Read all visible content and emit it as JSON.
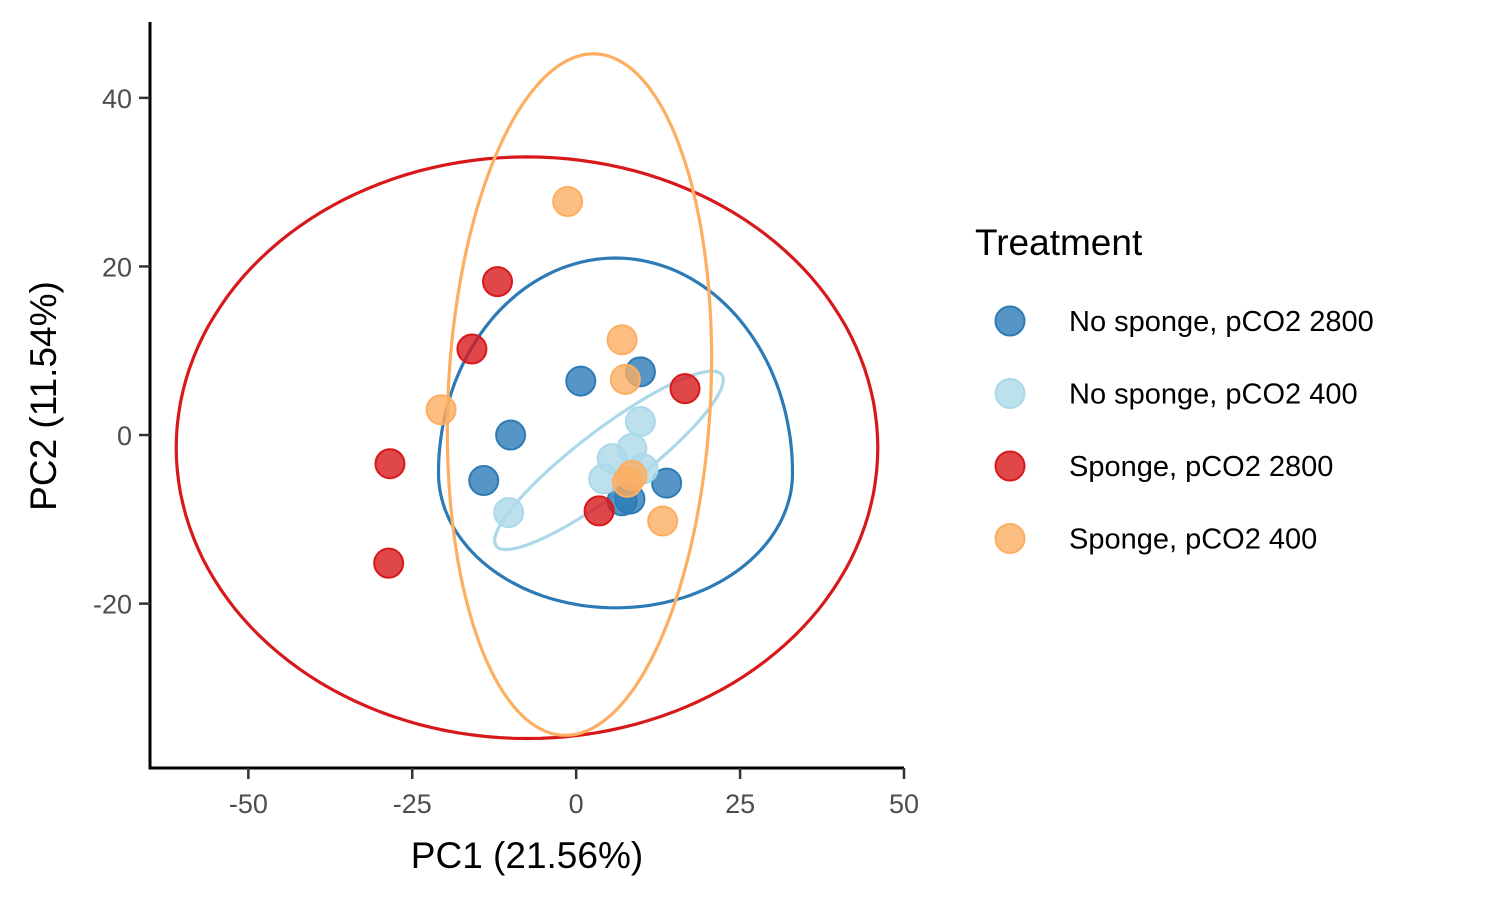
{
  "chart_data": {
    "type": "scatter",
    "xlabel": "PC1 (21.56%)",
    "ylabel": "PC2 (11.54%)",
    "xlim": [
      -65,
      50
    ],
    "ylim": [
      -39.5,
      49
    ],
    "x_ticks": [
      -50,
      -25,
      0,
      25,
      50
    ],
    "x_tick_labels": [
      "-50",
      "-25",
      "0",
      "25",
      "50"
    ],
    "y_ticks": [
      -20,
      0,
      20,
      40
    ],
    "y_tick_labels": [
      "-20",
      "0",
      "20",
      "40"
    ],
    "grid": false,
    "legend": {
      "title": "Treatment",
      "position": "right"
    },
    "series": [
      {
        "name": "No sponge, pCO2 2800",
        "color": "#2c7bb6",
        "points": [
          [
            0.7,
            6.4
          ],
          [
            9.8,
            7.5
          ],
          [
            -10.0,
            0.0
          ],
          [
            -14.1,
            -5.4
          ],
          [
            7.0,
            -7.8
          ],
          [
            8.2,
            -7.6
          ],
          [
            13.8,
            -5.7
          ]
        ],
        "ellipse": {
          "center": [
            6.0,
            -4.5
          ],
          "points": [
            [
              33.0,
              -4.5
            ],
            [
              6.0,
              21.0
            ],
            [
              -21.0,
              -4.5
            ],
            [
              6.0,
              -20.5
            ]
          ]
        }
      },
      {
        "name": "No sponge, pCO2 400",
        "color": "#abd9e9",
        "points": [
          [
            9.8,
            1.6
          ],
          [
            8.5,
            -1.6
          ],
          [
            5.5,
            -2.8
          ],
          [
            10.2,
            -4.0
          ],
          [
            4.2,
            -5.2
          ],
          [
            -10.3,
            -9.2
          ]
        ],
        "ellipse": {
          "center": [
            5.0,
            -3.0
          ],
          "rotation_deg": 30,
          "semi_axes": [
            20.0,
            4.0
          ]
        }
      },
      {
        "name": "Sponge, pCO2 2800",
        "color": "#d7191c",
        "points": [
          [
            -12.0,
            18.2
          ],
          [
            -15.9,
            10.2
          ],
          [
            16.6,
            5.5
          ],
          [
            -28.4,
            -3.4
          ],
          [
            3.5,
            -9.0
          ],
          [
            -28.6,
            -15.2
          ]
        ],
        "ellipse": {
          "center": [
            -7.5,
            -1.5
          ],
          "semi_axes": [
            53.5,
            34.5
          ]
        }
      },
      {
        "name": "Sponge, pCO2 400",
        "color": "#fdae61",
        "points": [
          [
            -1.3,
            27.7
          ],
          [
            7.0,
            11.3
          ],
          [
            7.5,
            6.6
          ],
          [
            -20.6,
            3.0
          ],
          [
            8.5,
            -4.8
          ],
          [
            7.8,
            -5.6
          ],
          [
            13.2,
            -10.2
          ]
        ],
        "ellipse": {
          "center": [
            0.5,
            4.8
          ],
          "rotation_deg": -4,
          "semi_axes": [
            20.0,
            40.5
          ]
        }
      }
    ]
  }
}
